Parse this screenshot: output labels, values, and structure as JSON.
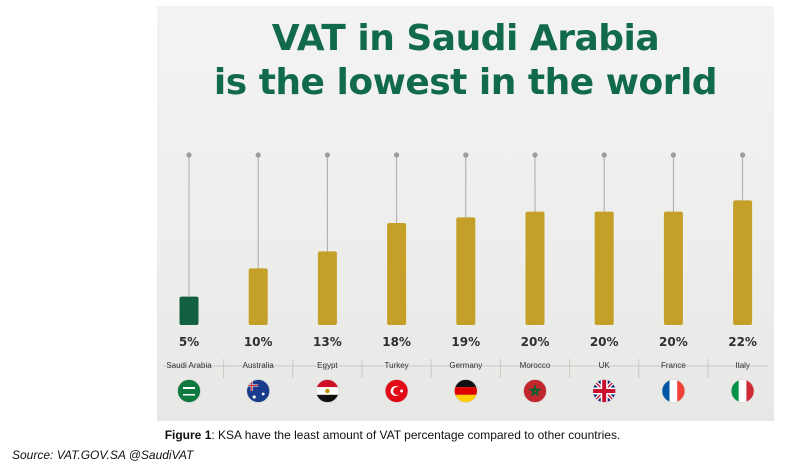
{
  "chart_data": {
    "type": "bar",
    "title": [
      "VAT in Saudi Arabia",
      "is the lowest in the world"
    ],
    "categories": [
      "Saudi Arabia",
      "Australia",
      "Egypt",
      "Turkey",
      "Germany",
      "Morocco",
      "UK",
      "France",
      "Italy"
    ],
    "values": [
      5,
      10,
      13,
      18,
      19,
      20,
      20,
      20,
      22
    ],
    "value_labels": [
      "5%",
      "10%",
      "13%",
      "18%",
      "19%",
      "20%",
      "20%",
      "20%",
      "22%"
    ],
    "unit": "%",
    "ylim": [
      0,
      30
    ],
    "grid": false,
    "legend": "none",
    "colors": {
      "Saudi Arabia": "#11603f",
      "others": "#c4a028",
      "title": "#126a4d",
      "stem": "#a9a9a9"
    },
    "flag_icons": [
      "saudi-arabia-flag-icon",
      "australia-flag-icon",
      "egypt-flag-icon",
      "turkey-flag-icon",
      "germany-flag-icon",
      "morocco-flag-icon",
      "uk-flag-icon",
      "france-flag-icon",
      "italy-flag-icon"
    ]
  },
  "caption": {
    "label": "Figure 1",
    "text": ": KSA have the least amount of VAT percentage compared to other countries."
  },
  "source": "Source: VAT.GOV.SA @SaudiVAT"
}
